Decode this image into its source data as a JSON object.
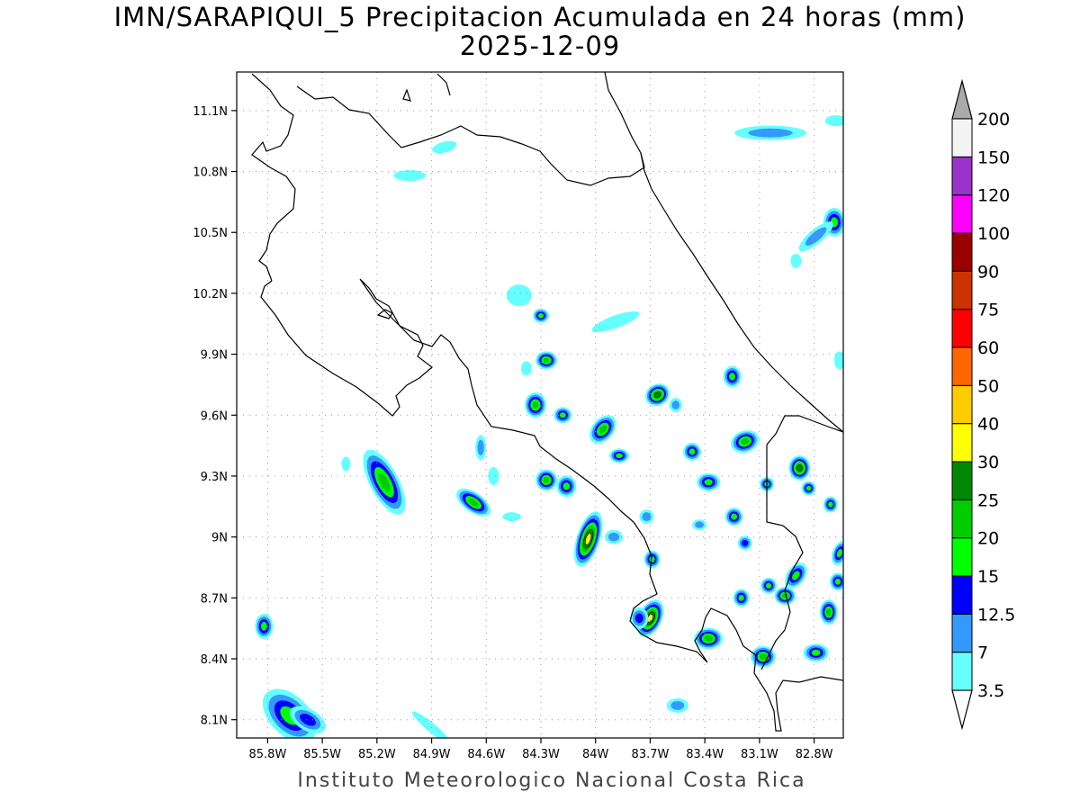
{
  "title": "IMN/SARAPIQUI_5 Precipitacion Acumulada en 24 horas (mm)",
  "date": "2025-12-09",
  "footer": "Instituto Meteorologico Nacional Costa Rica",
  "lat_labels": [
    "11.1N",
    "10.8N",
    "10.5N",
    "10.2N",
    "9.9N",
    "9.6N",
    "9.3N",
    "9N",
    "8.7N",
    "8.4N",
    "8.1N"
  ],
  "lat_values": [
    11.1,
    10.8,
    10.5,
    10.2,
    9.9,
    9.6,
    9.3,
    9.0,
    8.7,
    8.4,
    8.1
  ],
  "lon_labels": [
    "85.8W",
    "85.5W",
    "85.2W",
    "84.9W",
    "84.6W",
    "84.3W",
    "84W",
    "83.7W",
    "83.4W",
    "83.1W",
    "82.8W"
  ],
  "lon_values": [
    -85.8,
    -85.5,
    -85.2,
    -84.9,
    -84.6,
    -84.3,
    -84.0,
    -83.7,
    -83.4,
    -83.1,
    -82.8
  ],
  "extent": {
    "lon_min": -85.97,
    "lon_max": -82.64,
    "lat_min": 8.01,
    "lat_max": 11.29
  },
  "legend": {
    "levels": [
      "3.5",
      "7",
      "12.5",
      "15",
      "20",
      "25",
      "30",
      "40",
      "50",
      "60",
      "75",
      "90",
      "100",
      "120",
      "150",
      "200"
    ],
    "colors": [
      "#66ffff",
      "#3399ff",
      "#0000ff",
      "#00ff00",
      "#00cc00",
      "#008800",
      "#ffff00",
      "#ffcc00",
      "#ff6600",
      "#ff0000",
      "#cc3300",
      "#990000",
      "#ff00ff",
      "#9933cc",
      "#f4f4f4",
      "#aaaaaa"
    ]
  },
  "precip_cells": [
    {
      "lon": -84.04,
      "lat": 8.99,
      "intensity": 7,
      "rx": 13,
      "ry": 32,
      "rot": 18
    },
    {
      "lon": -83.7,
      "lat": 8.6,
      "intensity": 7,
      "rx": 13,
      "ry": 22,
      "rot": 25
    },
    {
      "lon": -83.66,
      "lat": 9.7,
      "intensity": 6,
      "rx": 14,
      "ry": 12,
      "rot": -30
    },
    {
      "lon": -82.88,
      "lat": 9.34,
      "intensity": 6,
      "rx": 12,
      "ry": 14,
      "rot": 0
    },
    {
      "lon": -85.16,
      "lat": 9.27,
      "intensity": 5,
      "rx": 16,
      "ry": 40,
      "rot": -28
    },
    {
      "lon": -84.67,
      "lat": 9.17,
      "intensity": 5,
      "rx": 22,
      "ry": 11,
      "rot": 35
    },
    {
      "lon": -83.96,
      "lat": 9.53,
      "intensity": 5,
      "rx": 12,
      "ry": 18,
      "rot": 40
    },
    {
      "lon": -84.33,
      "lat": 9.65,
      "intensity": 5,
      "rx": 12,
      "ry": 14,
      "rot": 0
    },
    {
      "lon": -84.27,
      "lat": 9.87,
      "intensity": 5,
      "rx": 12,
      "ry": 10,
      "rot": 0
    },
    {
      "lon": -83.38,
      "lat": 8.5,
      "intensity": 5,
      "rx": 16,
      "ry": 12,
      "rot": 0
    },
    {
      "lon": -83.08,
      "lat": 8.41,
      "intensity": 5,
      "rx": 14,
      "ry": 12,
      "rot": 0
    },
    {
      "lon": -82.96,
      "lat": 8.71,
      "intensity": 5,
      "rx": 12,
      "ry": 10,
      "rot": 0
    },
    {
      "lon": -82.72,
      "lat": 8.63,
      "intensity": 5,
      "rx": 10,
      "ry": 14,
      "rot": 0
    },
    {
      "lon": -82.79,
      "lat": 8.43,
      "intensity": 4,
      "rx": 14,
      "ry": 10,
      "rot": 0
    },
    {
      "lon": -82.66,
      "lat": 8.92,
      "intensity": 4,
      "rx": 8,
      "ry": 14,
      "rot": 20
    },
    {
      "lon": -82.67,
      "lat": 8.78,
      "intensity": 4,
      "rx": 9,
      "ry": 10,
      "rot": 0
    },
    {
      "lon": -83.18,
      "lat": 9.47,
      "intensity": 5,
      "rx": 16,
      "ry": 12,
      "rot": -20
    },
    {
      "lon": -83.38,
      "lat": 9.27,
      "intensity": 4,
      "rx": 13,
      "ry": 10,
      "rot": 0
    },
    {
      "lon": -84.27,
      "lat": 9.28,
      "intensity": 5,
      "rx": 12,
      "ry": 12,
      "rot": 0
    },
    {
      "lon": -84.16,
      "lat": 9.25,
      "intensity": 4,
      "rx": 11,
      "ry": 12,
      "rot": 0
    },
    {
      "lon": -84.18,
      "lat": 9.6,
      "intensity": 4,
      "rx": 10,
      "ry": 9,
      "rot": 0
    },
    {
      "lon": -83.87,
      "lat": 9.4,
      "intensity": 4,
      "rx": 11,
      "ry": 8,
      "rot": 0
    },
    {
      "lon": -83.25,
      "lat": 9.79,
      "intensity": 4,
      "rx": 10,
      "ry": 12,
      "rot": 0
    },
    {
      "lon": -83.47,
      "lat": 9.42,
      "intensity": 4,
      "rx": 10,
      "ry": 10,
      "rot": 0
    },
    {
      "lon": -83.24,
      "lat": 9.1,
      "intensity": 4,
      "rx": 10,
      "ry": 10,
      "rot": 0
    },
    {
      "lon": -83.2,
      "lat": 8.7,
      "intensity": 4,
      "rx": 9,
      "ry": 10,
      "rot": 0
    },
    {
      "lon": -83.06,
      "lat": 9.26,
      "intensity": 4,
      "rx": 8,
      "ry": 8,
      "rot": 0
    },
    {
      "lon": -82.83,
      "lat": 9.24,
      "intensity": 4,
      "rx": 8,
      "ry": 8,
      "rot": 0
    },
    {
      "lon": -82.71,
      "lat": 9.16,
      "intensity": 4,
      "rx": 8,
      "ry": 9,
      "rot": 0
    },
    {
      "lon": -82.9,
      "lat": 8.81,
      "intensity": 4,
      "rx": 10,
      "ry": 16,
      "rot": 35
    },
    {
      "lon": -83.05,
      "lat": 8.76,
      "intensity": 4,
      "rx": 9,
      "ry": 9,
      "rot": 0
    },
    {
      "lon": -83.76,
      "lat": 8.6,
      "intensity": 3,
      "rx": 10,
      "ry": 12,
      "rot": 0
    },
    {
      "lon": -83.69,
      "lat": 8.89,
      "intensity": 4,
      "rx": 9,
      "ry": 10,
      "rot": 0
    },
    {
      "lon": -84.3,
      "lat": 10.09,
      "intensity": 4,
      "rx": 9,
      "ry": 8,
      "rot": 0
    },
    {
      "lon": -83.18,
      "lat": 8.97,
      "intensity": 3,
      "rx": 8,
      "ry": 8,
      "rot": 0
    },
    {
      "lon": -85.82,
      "lat": 8.56,
      "intensity": 4,
      "rx": 10,
      "ry": 14,
      "rot": 0
    },
    {
      "lon": -85.68,
      "lat": 8.12,
      "intensity": 4,
      "rx": 22,
      "ry": 36,
      "rot": -45
    },
    {
      "lon": -85.58,
      "lat": 8.1,
      "intensity": 3,
      "rx": 22,
      "ry": 12,
      "rot": 30
    },
    {
      "lon": -82.69,
      "lat": 10.55,
      "intensity": 4,
      "rx": 12,
      "ry": 16,
      "rot": 0
    },
    {
      "lon": -82.79,
      "lat": 10.48,
      "intensity": 2,
      "rx": 24,
      "ry": 8,
      "rot": -40
    },
    {
      "lon": -83.04,
      "lat": 10.99,
      "intensity": 2,
      "rx": 40,
      "ry": 8,
      "rot": 0
    },
    {
      "lon": -84.83,
      "lat": 10.92,
      "intensity": 1,
      "rx": 14,
      "ry": 6,
      "rot": -15
    },
    {
      "lon": -85.02,
      "lat": 10.78,
      "intensity": 1,
      "rx": 18,
      "ry": 6,
      "rot": 0
    },
    {
      "lon": -84.42,
      "lat": 10.19,
      "intensity": 1,
      "rx": 14,
      "ry": 12,
      "rot": 0
    },
    {
      "lon": -83.89,
      "lat": 10.06,
      "intensity": 1,
      "rx": 28,
      "ry": 7,
      "rot": -20
    },
    {
      "lon": -84.63,
      "lat": 9.44,
      "intensity": 2,
      "rx": 6,
      "ry": 14,
      "rot": 0
    },
    {
      "lon": -83.72,
      "lat": 9.1,
      "intensity": 2,
      "rx": 8,
      "ry": 8,
      "rot": 0
    },
    {
      "lon": -83.9,
      "lat": 9.0,
      "intensity": 2,
      "rx": 10,
      "ry": 8,
      "rot": 0
    },
    {
      "lon": -83.55,
      "lat": 8.17,
      "intensity": 2,
      "rx": 12,
      "ry": 8,
      "rot": 0
    },
    {
      "lon": -84.9,
      "lat": 8.06,
      "intensity": 1,
      "rx": 28,
      "ry": 5,
      "rot": 40
    },
    {
      "lon": -85.37,
      "lat": 9.36,
      "intensity": 1,
      "rx": 5,
      "ry": 8,
      "rot": 0
    },
    {
      "lon": -82.9,
      "lat": 10.36,
      "intensity": 1,
      "rx": 6,
      "ry": 8,
      "rot": 0
    },
    {
      "lon": -82.66,
      "lat": 9.87,
      "intensity": 1,
      "rx": 6,
      "ry": 10,
      "rot": 0
    },
    {
      "lon": -82.68,
      "lat": 11.05,
      "intensity": 1,
      "rx": 12,
      "ry": 6,
      "rot": 0
    },
    {
      "lon": -83.56,
      "lat": 9.65,
      "intensity": 2,
      "rx": 7,
      "ry": 8,
      "rot": 0
    },
    {
      "lon": -84.38,
      "lat": 9.83,
      "intensity": 1,
      "rx": 6,
      "ry": 8,
      "rot": 0
    },
    {
      "lon": -83.43,
      "lat": 9.06,
      "intensity": 2,
      "rx": 8,
      "ry": 6,
      "rot": 0
    },
    {
      "lon": -84.46,
      "lat": 9.1,
      "intensity": 1,
      "rx": 10,
      "ry": 5,
      "rot": 0
    },
    {
      "lon": -84.56,
      "lat": 9.3,
      "intensity": 1,
      "rx": 6,
      "ry": 10,
      "rot": 0
    }
  ]
}
